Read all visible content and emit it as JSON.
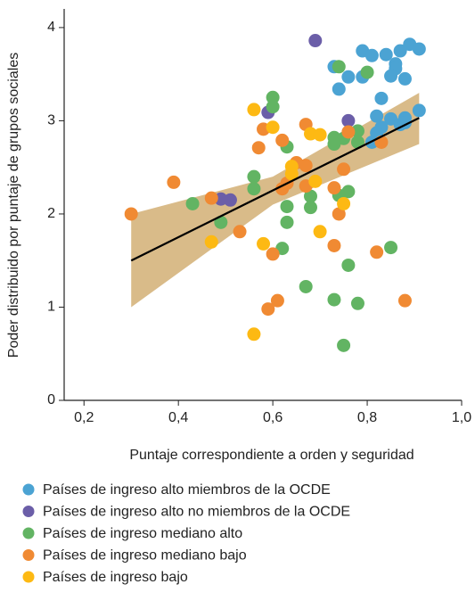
{
  "chart_data": {
    "type": "scatter",
    "xlabel": "Puntaje correspondiente a orden y seguridad",
    "ylabel": "Poder distribuido por puntaje de grupos sociales",
    "xlim": [
      0.158,
      1.0
    ],
    "ylim": [
      0,
      4.2
    ],
    "xticks": [
      {
        "value": 0.2,
        "label": "0,2"
      },
      {
        "value": 0.4,
        "label": "0,4"
      },
      {
        "value": 0.6,
        "label": "0,6"
      },
      {
        "value": 0.8,
        "label": "0,8"
      },
      {
        "value": 1.0,
        "label": "1,0"
      }
    ],
    "yticks": [
      0,
      1,
      2,
      3,
      4
    ],
    "band": {
      "color": "#d5b47c",
      "x": [
        0.3,
        0.6,
        0.91
      ],
      "lower": [
        1.0,
        2.1,
        2.75
      ],
      "upper": [
        2.0,
        2.4,
        3.3
      ]
    },
    "fit": {
      "color": "#000000",
      "x": [
        0.3,
        0.91
      ],
      "values": [
        1.5,
        3.03
      ]
    },
    "series": [
      {
        "name": "Países de ingreso alto miembros de la OCDE",
        "color": "#4ba3d3",
        "x": [
          0.79,
          0.81,
          0.84,
          0.87,
          0.89,
          0.91,
          0.86,
          0.86,
          0.73,
          0.74,
          0.76,
          0.79,
          0.85,
          0.88,
          0.83,
          0.82,
          0.85,
          0.88,
          0.87,
          0.88,
          0.91,
          0.83,
          0.81,
          0.82
        ],
        "values": [
          3.75,
          3.7,
          3.71,
          3.75,
          3.82,
          3.77,
          3.61,
          3.56,
          3.58,
          3.34,
          3.47,
          3.47,
          3.48,
          3.45,
          3.24,
          3.05,
          3.02,
          3.03,
          2.96,
          2.98,
          3.11,
          2.93,
          2.77,
          2.87
        ]
      },
      {
        "name": "Países de ingreso alto no miembros de la OCDE",
        "color": "#6b5ea8",
        "x": [
          0.69,
          0.59,
          0.76,
          0.51,
          0.49
        ],
        "values": [
          3.86,
          3.09,
          3.0,
          2.15,
          2.16
        ]
      },
      {
        "name": "Países de ingreso mediano alto",
        "color": "#62b463",
        "x": [
          0.6,
          0.6,
          0.74,
          0.8,
          0.63,
          0.56,
          0.56,
          0.43,
          0.49,
          0.63,
          0.63,
          0.68,
          0.68,
          0.76,
          0.74,
          0.62,
          0.67,
          0.76,
          0.73,
          0.78,
          0.75,
          0.85,
          0.73,
          0.75,
          0.73,
          0.78,
          0.78
        ],
        "values": [
          3.25,
          3.15,
          3.58,
          3.52,
          2.72,
          2.4,
          2.27,
          2.11,
          1.91,
          2.08,
          1.91,
          2.19,
          2.07,
          2.24,
          2.2,
          1.63,
          1.22,
          1.45,
          1.08,
          1.04,
          0.59,
          1.64,
          2.82,
          2.81,
          2.75,
          2.77,
          2.89
        ]
      },
      {
        "name": "Países de ingreso mediano bajo",
        "color": "#f08a33",
        "x": [
          0.3,
          0.39,
          0.47,
          0.53,
          0.57,
          0.58,
          0.62,
          0.65,
          0.67,
          0.63,
          0.62,
          0.67,
          0.67,
          0.73,
          0.75,
          0.74,
          0.73,
          0.6,
          0.61,
          0.59,
          0.82,
          0.88,
          0.83,
          0.76
        ],
        "values": [
          2.0,
          2.34,
          2.17,
          1.81,
          2.71,
          2.91,
          2.79,
          2.55,
          2.52,
          2.33,
          2.27,
          2.3,
          2.96,
          2.28,
          2.48,
          2.0,
          1.66,
          1.57,
          1.07,
          0.98,
          1.59,
          1.07,
          2.77,
          2.88
        ]
      },
      {
        "name": "Países de ingreso bajo",
        "color": "#fdb913",
        "x": [
          0.56,
          0.6,
          0.68,
          0.7,
          0.64,
          0.69,
          0.75,
          0.47,
          0.58,
          0.7,
          0.56,
          0.64
        ],
        "values": [
          3.12,
          2.93,
          2.86,
          2.85,
          2.51,
          2.35,
          2.11,
          1.7,
          1.68,
          1.81,
          0.71,
          2.43
        ]
      }
    ]
  }
}
